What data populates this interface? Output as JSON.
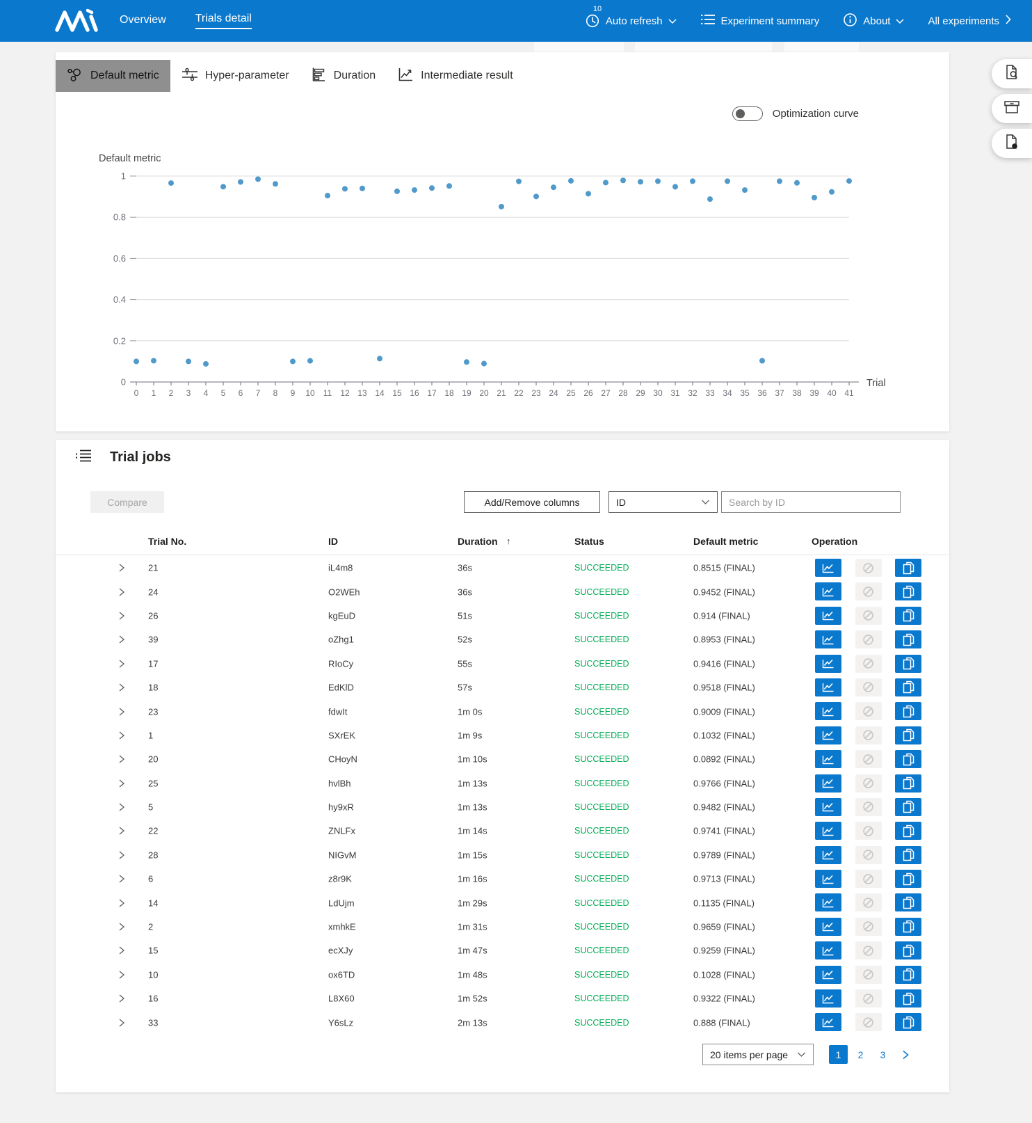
{
  "colors": {
    "accent": "#0a78cd",
    "succeeded": "#00ad56",
    "point": "#4f9aca",
    "active_tab_bg": "#8f8f8f"
  },
  "navbar": {
    "brand_icon": "nni-logo",
    "items": [
      {
        "label": "Overview",
        "active": false
      },
      {
        "label": "Trials detail",
        "active": true
      }
    ],
    "auto_refresh": {
      "icon": "clock-icon",
      "badge": "10",
      "label": "Auto refresh"
    },
    "experiment_summary": {
      "icon": "list-icon",
      "label": "Experiment summary"
    },
    "about": {
      "icon": "info-icon",
      "label": "About"
    },
    "all_experiments": {
      "label": "All experiments"
    }
  },
  "tabs": [
    {
      "icon": "scatter-icon",
      "label": "Default metric",
      "active": true
    },
    {
      "icon": "sliders-icon",
      "label": "Hyper-parameter",
      "active": false
    },
    {
      "icon": "bar-chart-icon",
      "label": "Duration",
      "active": false
    },
    {
      "icon": "line-chart-icon",
      "label": "Intermediate result",
      "active": false
    }
  ],
  "chart_panel": {
    "toggle_label": "Optimization curve",
    "toggle_state": "off"
  },
  "chart_data": {
    "type": "scatter",
    "title": "Default metric",
    "xlabel": "Trial",
    "ylabel": "Default metric",
    "xlim": [
      0,
      41
    ],
    "ylim": [
      0,
      1
    ],
    "yticks": [
      0,
      0.2,
      0.4,
      0.6,
      0.8,
      1
    ],
    "xtick_step": 1,
    "grid": true,
    "point_color": "#4f9aca",
    "x": [
      0,
      1,
      2,
      3,
      4,
      5,
      6,
      7,
      8,
      9,
      10,
      11,
      12,
      13,
      14,
      15,
      16,
      17,
      18,
      19,
      20,
      21,
      22,
      23,
      24,
      25,
      26,
      27,
      28,
      29,
      30,
      31,
      32,
      33,
      34,
      35,
      36,
      37,
      38,
      39,
      40,
      41
    ],
    "y": [
      0.1,
      0.1032,
      0.9659,
      0.1,
      0.088,
      0.9482,
      0.9713,
      0.985,
      0.962,
      0.1,
      0.1028,
      0.905,
      0.938,
      0.94,
      0.1135,
      0.9259,
      0.9322,
      0.9416,
      0.9518,
      0.097,
      0.0892,
      0.8515,
      0.9741,
      0.9009,
      0.9452,
      0.9766,
      0.914,
      0.968,
      0.9789,
      0.972,
      0.975,
      0.948,
      0.975,
      0.888,
      0.975,
      0.932,
      0.103,
      0.975,
      0.967,
      0.8953,
      0.923,
      0.976
    ]
  },
  "trial_jobs": {
    "icon": "detail-list-icon",
    "title": "Trial jobs",
    "compare_label": "Compare",
    "add_remove_label": "Add/Remove columns",
    "filter_selected": "ID",
    "search_placeholder": "Search by ID",
    "columns": [
      "Trial No.",
      "ID",
      "Duration",
      "Status",
      "Default metric",
      "Operation"
    ],
    "sort_column": "Duration",
    "sort_arrow": "↑",
    "rows": [
      {
        "trial_no": "21",
        "id": "iL4m8",
        "duration": "36s",
        "status": "SUCCEEDED",
        "metric": "0.8515 (FINAL)"
      },
      {
        "trial_no": "24",
        "id": "O2WEh",
        "duration": "36s",
        "status": "SUCCEEDED",
        "metric": "0.9452 (FINAL)"
      },
      {
        "trial_no": "26",
        "id": "kgEuD",
        "duration": "51s",
        "status": "SUCCEEDED",
        "metric": "0.914 (FINAL)"
      },
      {
        "trial_no": "39",
        "id": "oZhg1",
        "duration": "52s",
        "status": "SUCCEEDED",
        "metric": "0.8953 (FINAL)"
      },
      {
        "trial_no": "17",
        "id": "RIoCy",
        "duration": "55s",
        "status": "SUCCEEDED",
        "metric": "0.9416 (FINAL)"
      },
      {
        "trial_no": "18",
        "id": "EdKlD",
        "duration": "57s",
        "status": "SUCCEEDED",
        "metric": "0.9518 (FINAL)"
      },
      {
        "trial_no": "23",
        "id": "fdwIt",
        "duration": "1m 0s",
        "status": "SUCCEEDED",
        "metric": "0.9009 (FINAL)"
      },
      {
        "trial_no": "1",
        "id": "SXrEK",
        "duration": "1m 9s",
        "status": "SUCCEEDED",
        "metric": "0.1032 (FINAL)"
      },
      {
        "trial_no": "20",
        "id": "CHoyN",
        "duration": "1m 10s",
        "status": "SUCCEEDED",
        "metric": "0.0892 (FINAL)"
      },
      {
        "trial_no": "25",
        "id": "hvlBh",
        "duration": "1m 13s",
        "status": "SUCCEEDED",
        "metric": "0.9766 (FINAL)"
      },
      {
        "trial_no": "5",
        "id": "hy9xR",
        "duration": "1m 13s",
        "status": "SUCCEEDED",
        "metric": "0.9482 (FINAL)"
      },
      {
        "trial_no": "22",
        "id": "ZNLFx",
        "duration": "1m 14s",
        "status": "SUCCEEDED",
        "metric": "0.9741 (FINAL)"
      },
      {
        "trial_no": "28",
        "id": "NIGvM",
        "duration": "1m 15s",
        "status": "SUCCEEDED",
        "metric": "0.9789 (FINAL)"
      },
      {
        "trial_no": "6",
        "id": "z8r9K",
        "duration": "1m 16s",
        "status": "SUCCEEDED",
        "metric": "0.9713 (FINAL)"
      },
      {
        "trial_no": "14",
        "id": "LdUjm",
        "duration": "1m 29s",
        "status": "SUCCEEDED",
        "metric": "0.1135 (FINAL)"
      },
      {
        "trial_no": "2",
        "id": "xmhkE",
        "duration": "1m 31s",
        "status": "SUCCEEDED",
        "metric": "0.9659 (FINAL)"
      },
      {
        "trial_no": "15",
        "id": "ecXJy",
        "duration": "1m 47s",
        "status": "SUCCEEDED",
        "metric": "0.9259 (FINAL)"
      },
      {
        "trial_no": "10",
        "id": "ox6TD",
        "duration": "1m 48s",
        "status": "SUCCEEDED",
        "metric": "0.1028 (FINAL)"
      },
      {
        "trial_no": "16",
        "id": "L8X60",
        "duration": "1m 52s",
        "status": "SUCCEEDED",
        "metric": "0.9322 (FINAL)"
      },
      {
        "trial_no": "33",
        "id": "Y6sLz",
        "duration": "2m 13s",
        "status": "SUCCEEDED",
        "metric": "0.888 (FINAL)"
      }
    ],
    "pagination": {
      "per_page_label": "20 items per page",
      "pages": [
        "1",
        "2",
        "3"
      ],
      "active_page": "1"
    }
  },
  "side_buttons": [
    {
      "icon": "document-search-icon"
    },
    {
      "icon": "archive-icon"
    },
    {
      "icon": "document-dot-icon"
    }
  ]
}
